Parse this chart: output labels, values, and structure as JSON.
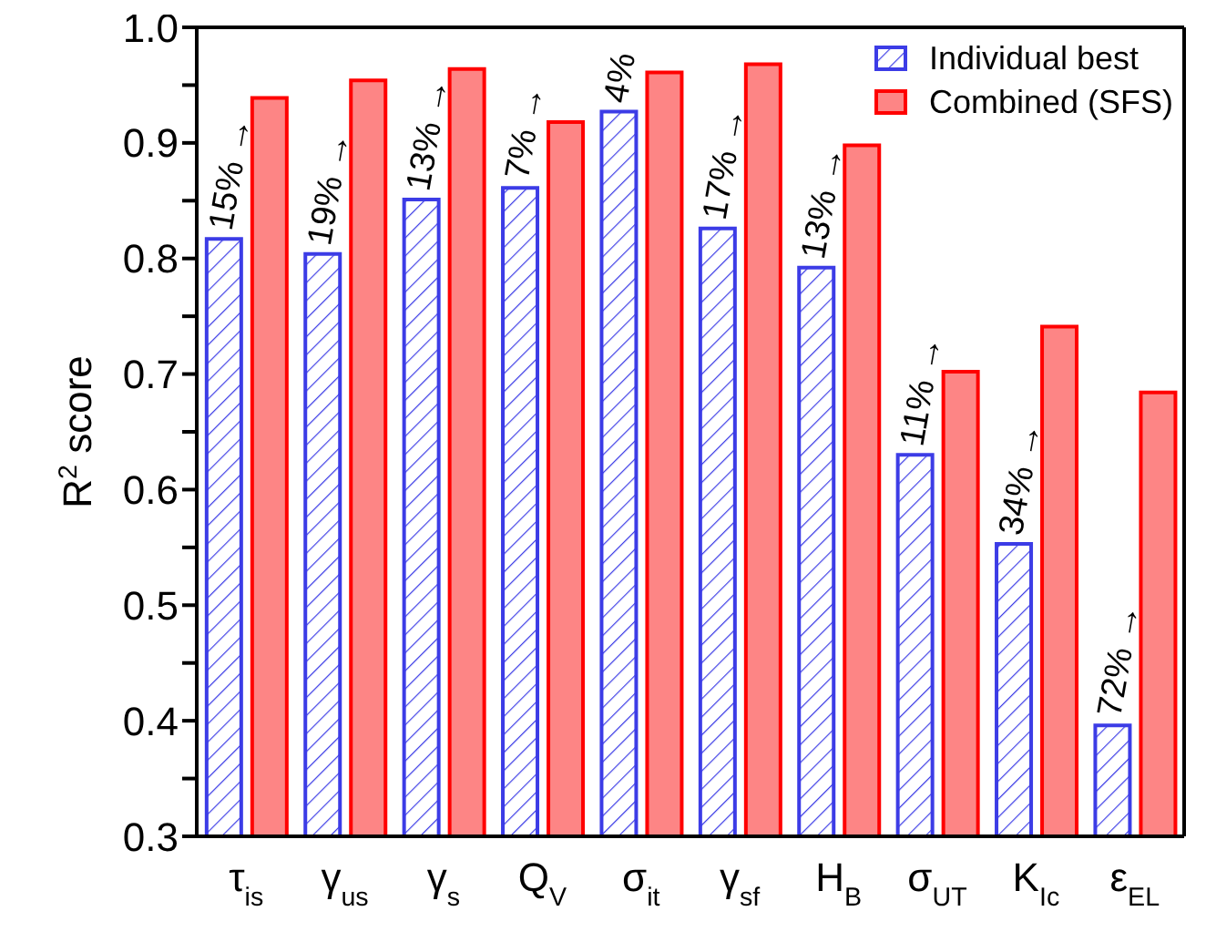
{
  "chart_data": {
    "type": "bar",
    "categories": [
      "τ$_{is}$",
      "γ$_{us}$",
      "γ$_{s}$",
      "Q$_{V}$",
      "σ$_{it}$",
      "γ$_{sf}$",
      "H$_{B}$",
      "σ$_{UT}$",
      "K$_{Ic}$",
      "ε$_{EL}$"
    ],
    "ylabel": "R$^{2}$ score",
    "series": [
      {
        "name": "Individual best",
        "color": "#3c3ce6",
        "values": [
          0.817,
          0.804,
          0.851,
          0.861,
          0.927,
          0.826,
          0.792,
          0.63,
          0.553,
          0.396
        ]
      },
      {
        "name": "Combined (SFS)",
        "color": "#fd8585",
        "values": [
          0.939,
          0.954,
          0.964,
          0.918,
          0.961,
          0.968,
          0.898,
          0.702,
          0.741,
          0.684
        ]
      }
    ],
    "ylim": [
      0.3,
      1.0
    ],
    "yticks": [
      0.3,
      {
        "value": 0.35,
        "label": null
      },
      0.4,
      {
        "value": 0.45,
        "label": null
      },
      0.5,
      {
        "value": 0.55,
        "label": null
      },
      0.6,
      {
        "value": 0.65,
        "label": null
      },
      0.7,
      {
        "value": 0.75,
        "label": null
      },
      0.8,
      {
        "value": 0.85,
        "label": null
      },
      0.9,
      {
        "value": 0.95,
        "label": null
      },
      {
        "value": 1.0,
        "label": "1.0"
      }
    ],
    "annotations": [
      {
        "text": "15% →",
        "x": "τ$_{is}$",
        "y": 0.817
      },
      {
        "text": "19% →",
        "x": "γ$_{us}$",
        "y": 0.804
      },
      {
        "text": "13% →",
        "x": "γ$_{s}$",
        "y": 0.851
      },
      {
        "text": "7% →",
        "x": "Q$_{V}$",
        "y": 0.861
      },
      {
        "text": "4%",
        "x": "σ$_{it}$",
        "y": 0.927
      },
      {
        "text": "17% →",
        "x": "γ$_{sf}$",
        "y": 0.826
      },
      {
        "text": "13% →",
        "x": "H$_{B}$",
        "y": 0.792
      },
      {
        "text": "11% →",
        "x": "σ$_{UT}$",
        "y": 0.63
      },
      {
        "text": "34% →",
        "x": "K$_{Ic}$",
        "y": 0.553
      },
      {
        "text": "72% →",
        "x": "ε$_{EL}$",
        "y": 0.396
      }
    ],
    "grid": false,
    "legend": "top right"
  }
}
